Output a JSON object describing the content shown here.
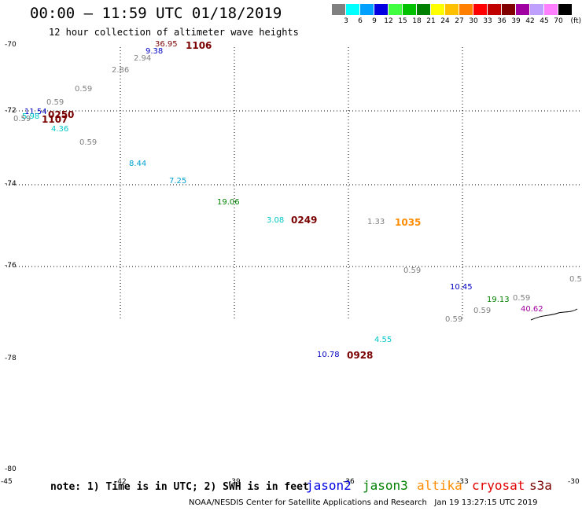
{
  "header": {
    "title": "00:00 – 11:59 UTC 01/18/2019",
    "subtitle": "12 hour collection of altimeter wave heights"
  },
  "legend": {
    "unit": "(ft)",
    "bins": [
      {
        "label": "3",
        "color": "#808080"
      },
      {
        "label": "6",
        "color": "#00ffff"
      },
      {
        "label": "9",
        "color": "#00a0ff"
      },
      {
        "label": "12",
        "color": "#0000e0"
      },
      {
        "label": "15",
        "color": "#40ff40"
      },
      {
        "label": "18",
        "color": "#00c000"
      },
      {
        "label": "21",
        "color": "#008000"
      },
      {
        "label": "24",
        "color": "#ffff00"
      },
      {
        "label": "27",
        "color": "#ffc000"
      },
      {
        "label": "30",
        "color": "#ff8000"
      },
      {
        "label": "33",
        "color": "#ff0000"
      },
      {
        "label": "36",
        "color": "#c00000"
      },
      {
        "label": "39",
        "color": "#800000"
      },
      {
        "label": "42",
        "color": "#a000a0"
      },
      {
        "label": "45",
        "color": "#c0a0ff"
      },
      {
        "label": "70",
        "color": "#ff80ff"
      },
      {
        "label": "",
        "color": "#000000"
      }
    ]
  },
  "axes": {
    "lat_labels": [
      "-70",
      "-72",
      "-74",
      "-76",
      "-78",
      "-80"
    ],
    "lon_labels": [
      "-45",
      "-42",
      "-39",
      "-36",
      "-33",
      "-30"
    ]
  },
  "observations": [
    {
      "text": "36.95",
      "color": "#7a0000"
    },
    {
      "text": "9.38",
      "color": "#0000c0"
    },
    {
      "text": "2.94",
      "color": "#808080"
    },
    {
      "text": "2.86",
      "color": "#808080"
    },
    {
      "text": "0.59",
      "color": "#808080"
    },
    {
      "text": "0.59",
      "color": "#808080"
    },
    {
      "text": "11.54",
      "color": "#0000c0"
    },
    {
      "text": "5.98",
      "color": "#00c8c8"
    },
    {
      "text": "0.59",
      "color": "#808080"
    },
    {
      "text": "4.36",
      "color": "#00c8c8"
    },
    {
      "text": "0.59",
      "color": "#808080"
    },
    {
      "text": "8.44",
      "color": "#00a0d0"
    },
    {
      "text": "7.25",
      "color": "#00a0d0"
    },
    {
      "text": "19.06",
      "color": "#008000"
    },
    {
      "text": "3.08",
      "color": "#00c8c8"
    },
    {
      "text": "1.33",
      "color": "#808080"
    },
    {
      "text": "0.59",
      "color": "#808080"
    },
    {
      "text": "10.45",
      "color": "#0000c0"
    },
    {
      "text": "19.13",
      "color": "#008000"
    },
    {
      "text": "0.59",
      "color": "#808080"
    },
    {
      "text": "0.59",
      "color": "#808080"
    },
    {
      "text": "0.59",
      "color": "#808080"
    },
    {
      "text": "40.62",
      "color": "#a000a0"
    },
    {
      "text": "0.5",
      "color": "#808080"
    },
    {
      "text": "4.55",
      "color": "#00c8c8"
    },
    {
      "text": "10.78",
      "color": "#0000c0"
    }
  ],
  "pass_times": [
    {
      "text": "1106",
      "color": "#7a0000"
    },
    {
      "text": "0250",
      "color": "#7a0000"
    },
    {
      "text": "1107",
      "color": "#7a0000"
    },
    {
      "text": "0249",
      "color": "#7a0000"
    },
    {
      "text": "1035",
      "color": "#ff8c00"
    },
    {
      "text": "0928",
      "color": "#7a0000"
    }
  ],
  "footer": {
    "note": "note: 1) Time is in UTC; 2) SWH is in feet",
    "satellites": [
      {
        "name": "jason2",
        "color": "#0000e0"
      },
      {
        "name": "jason3",
        "color": "#008000"
      },
      {
        "name": "altika",
        "color": "#ff8c00"
      },
      {
        "name": "cryosat",
        "color": "#e00000"
      },
      {
        "name": "s3a",
        "color": "#7a0000"
      }
    ],
    "credit": "NOAA/NESDIS Center for Satellite Applications and Research   Jan 19 13:27:15 UTC 2019"
  }
}
